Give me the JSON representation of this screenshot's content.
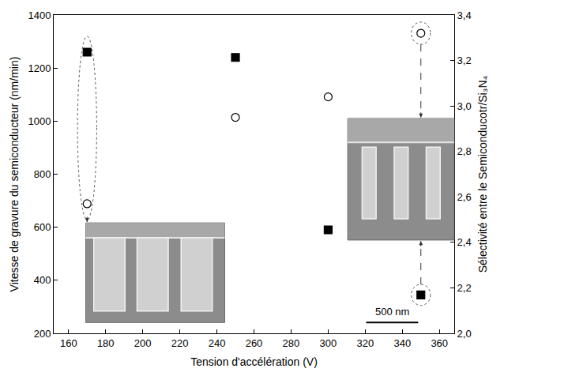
{
  "chart_data": {
    "type": "scatter",
    "xlabel": "Tension d'accélération (V)",
    "ylabel": "Vitesse de gravure du semiconducteur (nm/min)",
    "y2label": "Sélectivité entre le Semiconducotr/Si₃N₄",
    "xlim": [
      152,
      368
    ],
    "xticks": [
      160,
      180,
      200,
      220,
      240,
      260,
      280,
      300,
      320,
      340,
      360
    ],
    "ylim": [
      200,
      1400
    ],
    "yticks": [
      200,
      400,
      600,
      800,
      1000,
      1200,
      1400
    ],
    "y2lim": [
      2.0,
      3.4
    ],
    "y2ticks": [
      {
        "value": 2.0,
        "label": "2,0"
      },
      {
        "value": 2.2,
        "label": "2,2"
      },
      {
        "value": 2.4,
        "label": "2,4"
      },
      {
        "value": 2.6,
        "label": "2,6"
      },
      {
        "value": 2.8,
        "label": "2,8"
      },
      {
        "value": 3.0,
        "label": "3,0"
      },
      {
        "value": 3.2,
        "label": "3,2"
      },
      {
        "value": 3.4,
        "label": "3,4"
      }
    ],
    "grid": false,
    "series": [
      {
        "axis": "y",
        "marker": "square",
        "color": "#000000",
        "x": [
          170,
          250,
          300,
          350
        ],
        "values": [
          1260,
          1240,
          590,
          345
        ]
      },
      {
        "axis": "y2",
        "marker": "circle-open",
        "color": "#000000",
        "x": [
          170,
          250,
          300,
          350
        ],
        "values": [
          2.57,
          2.95,
          3.04,
          3.32
        ]
      }
    ],
    "annotations": [
      {
        "text": "500 nm"
      }
    ]
  }
}
